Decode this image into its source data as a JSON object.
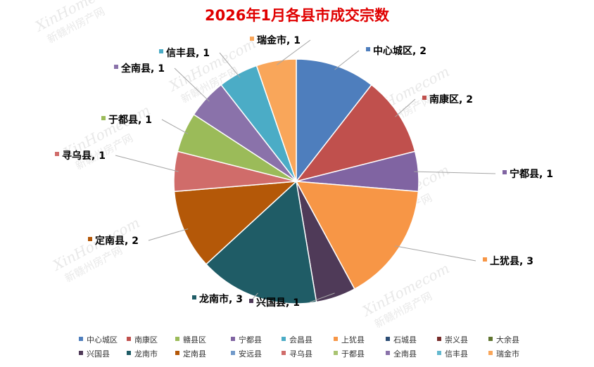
{
  "chart_data": {
    "type": "pie",
    "title": "2026年1月各县市成交宗数",
    "watermark": [
      "XinHomecom",
      "新赣州房产网"
    ],
    "slices": [
      {
        "name": "中心城区",
        "value": 2,
        "color": "#4e7ebd"
      },
      {
        "name": "南康区",
        "value": 2,
        "color": "#c0504d"
      },
      {
        "name": "宁都县",
        "value": 1,
        "color": "#8064a2"
      },
      {
        "name": "上犹县",
        "value": 3,
        "color": "#f79646"
      },
      {
        "name": "兴国县",
        "value": 1,
        "color": "#4f3a58"
      },
      {
        "name": "龙南市",
        "value": 3,
        "color": "#1f5c66"
      },
      {
        "name": "定南县",
        "value": 2,
        "color": "#b45808"
      },
      {
        "name": "寻乌县",
        "value": 1,
        "color": "#d06c6a"
      },
      {
        "name": "于都县",
        "value": 1,
        "color": "#9bbb59"
      },
      {
        "name": "全南县",
        "value": 1,
        "color": "#8a72aa"
      },
      {
        "name": "信丰县",
        "value": 1,
        "color": "#4bacc6"
      },
      {
        "name": "瑞金市",
        "value": 1,
        "color": "#f9a65a"
      }
    ],
    "legend": [
      {
        "name": "中心城区",
        "color": "#4e7ebd"
      },
      {
        "name": "南康区",
        "color": "#c0504d"
      },
      {
        "name": "赣县区",
        "color": "#9bbb59"
      },
      {
        "name": "宁都县",
        "color": "#8064a2"
      },
      {
        "name": "会昌县",
        "color": "#4bacc6"
      },
      {
        "name": "上犹县",
        "color": "#f79646"
      },
      {
        "name": "石城县",
        "color": "#2c4d75"
      },
      {
        "name": "崇义县",
        "color": "#772c2a"
      },
      {
        "name": "大余县",
        "color": "#5f7530"
      },
      {
        "name": "兴国县",
        "color": "#4f3a58"
      },
      {
        "name": "龙南市",
        "color": "#1f5c66"
      },
      {
        "name": "定南县",
        "color": "#b45808"
      },
      {
        "name": "安远县",
        "color": "#729aca"
      },
      {
        "name": "寻乌县",
        "color": "#d06c6a"
      },
      {
        "name": "于都县",
        "color": "#a9c472"
      },
      {
        "name": "全南县",
        "color": "#8a72aa"
      },
      {
        "name": "信丰县",
        "color": "#64b9cf"
      },
      {
        "name": "瑞金市",
        "color": "#f9a65a"
      }
    ],
    "legend_position": "bottom",
    "data_labels": "name, value"
  }
}
